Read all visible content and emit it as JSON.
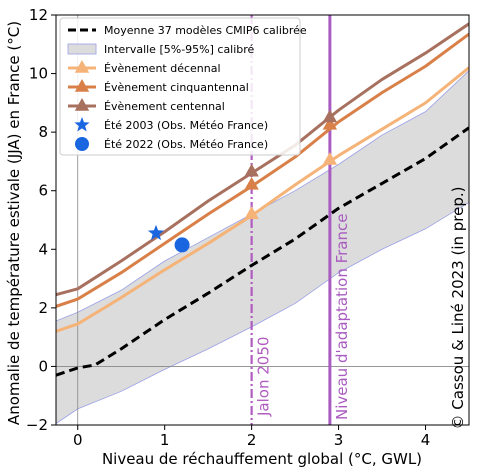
{
  "chart_data": {
    "type": "line",
    "xlabel": "Niveau de réchauffement global (°C, GWL)",
    "ylabel": "Anomalie de température estivale (JJA) en France (°C)",
    "xlim": [
      -0.25,
      4.5
    ],
    "ylim": [
      -2,
      12
    ],
    "x_ticks": [
      0,
      1,
      2,
      3,
      4
    ],
    "y_ticks": [
      -2,
      0,
      2,
      4,
      6,
      8,
      10,
      12
    ],
    "grid": false,
    "legend_position": "top-left",
    "credit": "© Cassou & Liné 2023 (in prep.)",
    "vertical_lines": [
      {
        "name": "Jalon 2050",
        "x": 2.0,
        "style": "dashdot",
        "color": "#b05cc0"
      },
      {
        "name": "Niveau d'adaptation France",
        "x": 2.9,
        "style": "solid",
        "color": "#a85cc0"
      }
    ],
    "band": {
      "name": "Intervalle [5%-95%] calibré",
      "color": "#dcdcdc",
      "edge_color": "#9aa0e6",
      "x": [
        -0.25,
        0,
        0.5,
        1,
        1.5,
        2,
        2.5,
        3,
        3.5,
        4,
        4.5
      ],
      "lower": [
        -1.95,
        -1.45,
        -0.85,
        -0.1,
        0.6,
        1.35,
        2.15,
        3.2,
        4.0,
        4.7,
        5.6
      ],
      "upper": [
        1.55,
        1.85,
        2.6,
        3.6,
        4.4,
        5.2,
        6.0,
        6.9,
        7.9,
        8.7,
        10.1
      ]
    },
    "series": [
      {
        "name": "Moyenne 37 modèles CMIP6 calibrée",
        "style": "dashed",
        "color": "#000000",
        "x": [
          -0.25,
          0,
          0.2,
          0.5,
          1,
          1.5,
          2,
          2.5,
          3,
          3.5,
          4,
          4.5
        ],
        "y": [
          -0.3,
          -0.05,
          0.05,
          0.6,
          1.6,
          2.5,
          3.45,
          4.35,
          5.4,
          6.25,
          7.1,
          8.15
        ]
      },
      {
        "name": "Évènement décennal",
        "style": "solid",
        "color": "#f5b378",
        "x": [
          -0.25,
          0,
          0.5,
          1,
          1.5,
          2,
          2.5,
          3,
          3.5,
          4,
          4.5
        ],
        "y": [
          1.2,
          1.45,
          2.35,
          3.3,
          4.2,
          5.15,
          6.2,
          7.2,
          8.1,
          9.0,
          10.2
        ]
      },
      {
        "name": "Évènement cinquantennal",
        "style": "solid",
        "color": "#d98048",
        "x": [
          -0.25,
          0,
          0.5,
          1,
          1.5,
          2,
          2.5,
          3,
          3.5,
          4,
          4.5
        ],
        "y": [
          2.05,
          2.3,
          3.2,
          4.2,
          5.2,
          6.15,
          7.15,
          8.35,
          9.35,
          10.25,
          11.35
        ]
      },
      {
        "name": "Évènement centennal",
        "style": "solid",
        "color": "#a8705e",
        "x": [
          -0.25,
          0,
          0.5,
          1,
          1.5,
          2,
          2.5,
          3,
          3.5,
          4,
          4.5
        ],
        "y": [
          2.45,
          2.65,
          3.6,
          4.6,
          5.65,
          6.6,
          7.55,
          8.75,
          9.8,
          10.7,
          11.7
        ]
      }
    ],
    "markers": [
      {
        "series": "Évènement décennal",
        "shape": "triangle",
        "color": "#f5b378",
        "points": [
          [
            2.0,
            5.2
          ],
          [
            2.9,
            7.05
          ]
        ]
      },
      {
        "series": "Évènement cinquantennal",
        "shape": "triangle",
        "color": "#d98048",
        "points": [
          [
            2.0,
            6.2
          ],
          [
            2.9,
            8.25
          ]
        ]
      },
      {
        "series": "Évènement centennal",
        "shape": "triangle",
        "color": "#a8705e",
        "points": [
          [
            2.0,
            6.65
          ],
          [
            2.9,
            8.5
          ]
        ]
      }
    ],
    "observations": [
      {
        "name": "Été 2003 (Obs. Météo France)",
        "shape": "star",
        "color": "#1a66e0",
        "x": 0.9,
        "y": 4.55
      },
      {
        "name": "Été 2022 (Obs. Météo France)",
        "shape": "circle",
        "color": "#1a66e0",
        "x": 1.2,
        "y": 4.15
      }
    ]
  }
}
